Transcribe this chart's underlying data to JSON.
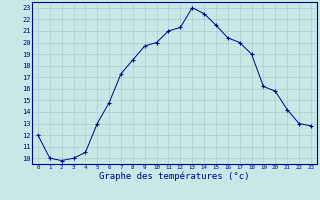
{
  "x": [
    0,
    1,
    2,
    3,
    4,
    5,
    6,
    7,
    8,
    9,
    10,
    11,
    12,
    13,
    14,
    15,
    16,
    17,
    18,
    19,
    20,
    21,
    22,
    23
  ],
  "y": [
    12,
    10,
    9.8,
    10,
    10.5,
    13,
    14.8,
    17.3,
    18.5,
    19.7,
    20,
    21,
    21.3,
    23,
    22.5,
    21.5,
    20.4,
    20,
    19,
    16.2,
    15.8,
    14.2,
    13,
    12.8
  ],
  "line_color": "#00008B",
  "marker": "+",
  "marker_color": "#00008B",
  "bg_color": "#c8e8e8",
  "grid_color": "#aacccc",
  "xlabel": "Graphe des températures (°c)",
  "xlabel_color": "#00008B",
  "tick_color": "#00008B",
  "ylim": [
    9.5,
    23.5
  ],
  "xlim": [
    -0.5,
    23.5
  ],
  "yticks": [
    10,
    11,
    12,
    13,
    14,
    15,
    16,
    17,
    18,
    19,
    20,
    21,
    22,
    23
  ],
  "xticks": [
    0,
    1,
    2,
    3,
    4,
    5,
    6,
    7,
    8,
    9,
    10,
    11,
    12,
    13,
    14,
    15,
    16,
    17,
    18,
    19,
    20,
    21,
    22,
    23
  ],
  "spine_color": "#00008B"
}
